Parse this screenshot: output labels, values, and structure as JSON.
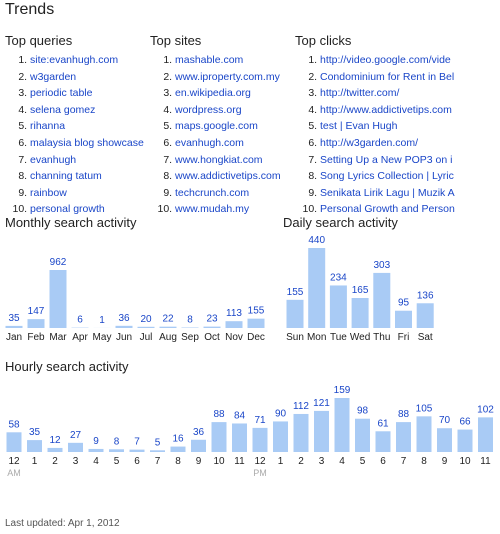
{
  "title": "Trends",
  "lists": [
    {
      "heading": "Top queries",
      "items": [
        "site:evanhugh.com",
        "w3garden",
        "periodic table",
        "selena gomez",
        "rihanna",
        "malaysia blog showcase",
        "evanhugh",
        "channing tatum",
        "rainbow",
        "personal growth"
      ]
    },
    {
      "heading": "Top sites",
      "items": [
        "mashable.com",
        "www.iproperty.com.my",
        "en.wikipedia.org",
        "wordpress.org",
        "maps.google.com",
        "evanhugh.com",
        "www.hongkiat.com",
        "www.addictivetips.com",
        "techcrunch.com",
        "www.mudah.my"
      ]
    },
    {
      "heading": "Top clicks",
      "items": [
        "http://video.google.com/vide",
        "Condominium for Rent in Bel",
        "http://twitter.com/",
        "http://www.addictivetips.com",
        "test | Evan Hugh",
        "http://w3garden.com/",
        "Setting Up a New POP3 on i",
        "Song Lyrics Collection | Lyric",
        "Senikata Lirik Lagu | Muzik A",
        "Personal Growth and Person"
      ]
    }
  ],
  "chart_data": [
    {
      "type": "bar",
      "title": "Monthly search activity",
      "color": "#a9cbf5",
      "categories": [
        "Jan",
        "Feb",
        "Mar",
        "Apr",
        "May",
        "Jun",
        "Jul",
        "Aug",
        "Sep",
        "Oct",
        "Nov",
        "Dec"
      ],
      "values": [
        35,
        147,
        962,
        6,
        1,
        36,
        20,
        22,
        8,
        23,
        113,
        155
      ]
    },
    {
      "type": "bar",
      "title": "Daily search activity",
      "color": "#a9cbf5",
      "categories": [
        "Sun",
        "Mon",
        "Tue",
        "Wed",
        "Thu",
        "Fri",
        "Sat"
      ],
      "values": [
        155,
        440,
        234,
        165,
        303,
        95,
        136
      ]
    },
    {
      "type": "bar",
      "title": "Hourly search activity",
      "color": "#a9cbf5",
      "categories": [
        "12",
        "1",
        "2",
        "3",
        "4",
        "5",
        "6",
        "7",
        "8",
        "9",
        "10",
        "11",
        "12",
        "1",
        "2",
        "3",
        "4",
        "5",
        "6",
        "7",
        "8",
        "9",
        "10",
        "11"
      ],
      "values": [
        58,
        35,
        12,
        27,
        9,
        8,
        7,
        5,
        16,
        36,
        88,
        84,
        71,
        90,
        112,
        121,
        159,
        98,
        61,
        88,
        105,
        70,
        66,
        102
      ],
      "am_label": "AM",
      "pm_label": "PM"
    }
  ],
  "footer": "Last updated: Apr 1, 2012"
}
